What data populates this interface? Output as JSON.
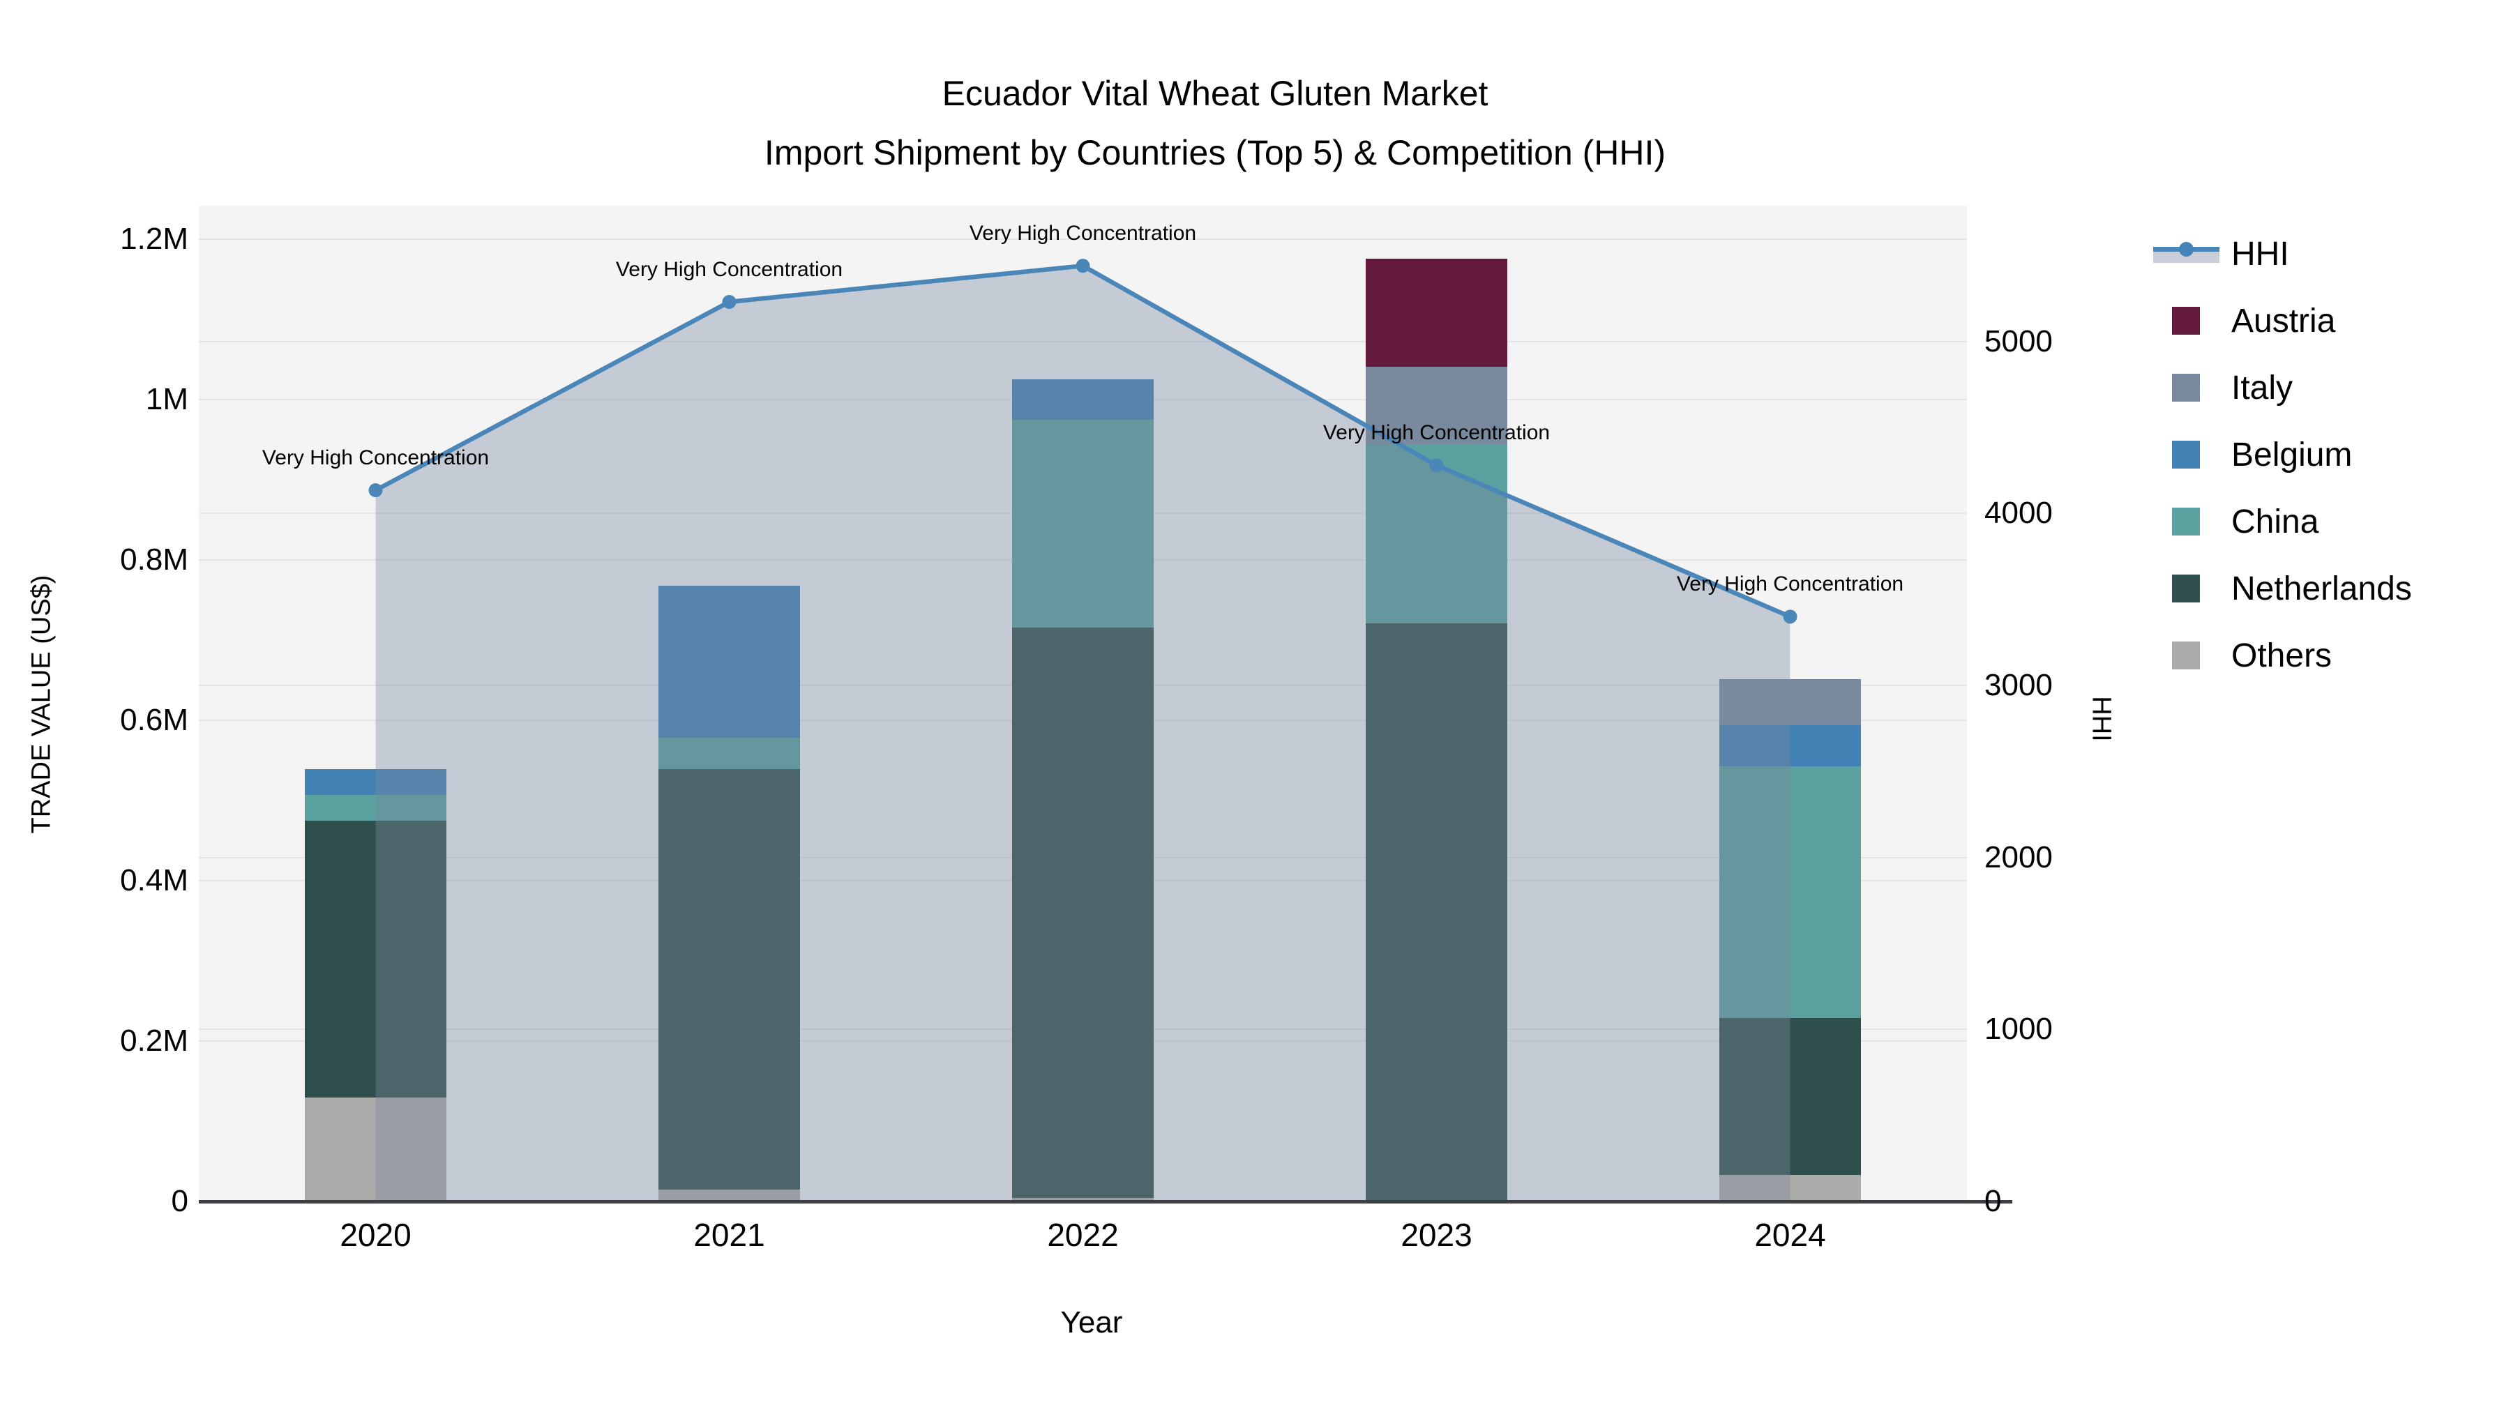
{
  "title": {
    "line1": "Ecuador Vital Wheat Gluten Market",
    "line2": "Import Shipment by Countries (Top 5) & Competition (HHI)"
  },
  "axes": {
    "x": {
      "title": "Year",
      "labels": [
        "2020",
        "2021",
        "2022",
        "2023",
        "2024"
      ]
    },
    "y_left": {
      "title": "TRADE VALUE (US$)",
      "ticks": [
        {
          "label": "0",
          "value": 0
        },
        {
          "label": "0.2M",
          "value": 200000
        },
        {
          "label": "0.4M",
          "value": 400000
        },
        {
          "label": "0.6M",
          "value": 600000
        },
        {
          "label": "0.8M",
          "value": 800000
        },
        {
          "label": "1M",
          "value": 1000000
        },
        {
          "label": "1.2M",
          "value": 1200000
        }
      ]
    },
    "y_right": {
      "title": "HHI",
      "ticks": [
        {
          "label": "0",
          "value": 0
        },
        {
          "label": "1000",
          "value": 1000
        },
        {
          "label": "2000",
          "value": 2000
        },
        {
          "label": "3000",
          "value": 3000
        },
        {
          "label": "4000",
          "value": 4000
        },
        {
          "label": "5000",
          "value": 5000
        }
      ]
    }
  },
  "legend": [
    {
      "label": "HHI",
      "type": "line",
      "color": "#4a86b8"
    },
    {
      "label": "Austria",
      "type": "bar",
      "color": "#641a3c"
    },
    {
      "label": "Italy",
      "type": "bar",
      "color": "#7a8a9e"
    },
    {
      "label": "Belgium",
      "type": "bar",
      "color": "#4382b4"
    },
    {
      "label": "China",
      "type": "bar",
      "color": "#5ba19f"
    },
    {
      "label": "Netherlands",
      "type": "bar",
      "color": "#2f4f4c"
    },
    {
      "label": "Others",
      "type": "bar",
      "color": "#ababa9"
    }
  ],
  "chart_data": {
    "type": [
      "bar",
      "line"
    ],
    "title": "Ecuador Vital Wheat Gluten Market — Import Shipment by Countries (Top 5) & Competition (HHI)",
    "categories": [
      "2020",
      "2021",
      "2022",
      "2023",
      "2024"
    ],
    "bar_series_stack_bottom_to_top": [
      {
        "name": "Others",
        "color": "#ababa9",
        "values": [
          130000,
          15000,
          4000,
          0,
          33000
        ]
      },
      {
        "name": "Netherlands",
        "color": "#2f4f4c",
        "values": [
          345000,
          524000,
          712000,
          721000,
          196000
        ]
      },
      {
        "name": "China",
        "color": "#5ba19f",
        "values": [
          32000,
          39000,
          259000,
          223000,
          314000
        ]
      },
      {
        "name": "Belgium",
        "color": "#4382b4",
        "values": [
          32000,
          190000,
          50000,
          0,
          51000
        ]
      },
      {
        "name": "Italy",
        "color": "#7a8a9e",
        "values": [
          0,
          0,
          0,
          97000,
          57000
        ]
      },
      {
        "name": "Austria",
        "color": "#641a3c",
        "values": [
          0,
          0,
          0,
          135000,
          0
        ]
      }
    ],
    "bar_totals": [
      539000,
      768000,
      1025000,
      1176000,
      651000
    ],
    "line_series": {
      "name": "HHI",
      "color": "#4a86b8",
      "area_fill": "rgba(121,136,158,0.38)",
      "values": [
        4135,
        5230,
        5440,
        4280,
        3400
      ]
    },
    "annotations": [
      {
        "x": "2020",
        "text": "Very High Concentration"
      },
      {
        "x": "2021",
        "text": "Very High Concentration"
      },
      {
        "x": "2022",
        "text": "Very High Concentration"
      },
      {
        "x": "2023",
        "text": "Very High Concentration"
      },
      {
        "x": "2024",
        "text": "Very High Concentration"
      }
    ],
    "xlabel": "Year",
    "ylabel_left": "TRADE VALUE (US$)",
    "ylabel_right": "HHI",
    "ylim_left": [
      0,
      1242000
    ],
    "ylim_right": [
      0,
      5790
    ],
    "grid": true,
    "legend_position": "right"
  }
}
